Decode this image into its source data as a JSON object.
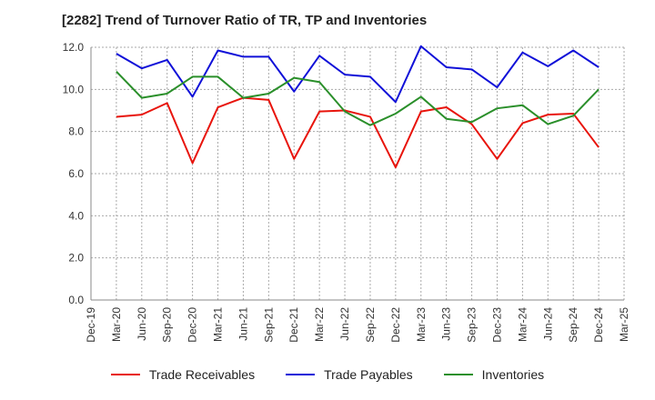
{
  "chart_data": {
    "type": "line",
    "title": "[2282]  Trend of Turnover Ratio of TR, TP and Inventories",
    "xlabel": "",
    "ylabel": "",
    "ylim": [
      0,
      12
    ],
    "yticks": [
      "0.0",
      "2.0",
      "4.0",
      "6.0",
      "8.0",
      "10.0",
      "12.0"
    ],
    "x_tick_labels": [
      "Dec-19",
      "Mar-20",
      "Jun-20",
      "Sep-20",
      "Dec-20",
      "Mar-21",
      "Jun-21",
      "Sep-21",
      "Dec-21",
      "Mar-22",
      "Jun-22",
      "Sep-22",
      "Dec-22",
      "Mar-23",
      "Jun-23",
      "Sep-23",
      "Dec-23",
      "Mar-24",
      "Jun-24",
      "Sep-24",
      "Dec-24",
      "Mar-25"
    ],
    "grid": true,
    "legend_position": "bottom",
    "series": [
      {
        "name": "Trade Receivables",
        "color": "#e8140c",
        "x": [
          "Mar-20",
          "Jun-20",
          "Sep-20",
          "Dec-20",
          "Mar-21",
          "Jun-21",
          "Sep-21",
          "Dec-21",
          "Mar-22",
          "Jun-22",
          "Sep-22",
          "Dec-22",
          "Mar-23",
          "Jun-23",
          "Sep-23",
          "Dec-23",
          "Mar-24",
          "Jun-24",
          "Sep-24",
          "Dec-24"
        ],
        "values": [
          8.7,
          8.8,
          9.35,
          6.5,
          9.15,
          9.6,
          9.5,
          6.7,
          8.95,
          9.0,
          8.7,
          6.3,
          8.95,
          9.15,
          8.35,
          6.7,
          8.4,
          8.8,
          8.85,
          7.25
        ]
      },
      {
        "name": "Trade Payables",
        "color": "#1010d8",
        "x": [
          "Mar-20",
          "Jun-20",
          "Sep-20",
          "Dec-20",
          "Mar-21",
          "Jun-21",
          "Sep-21",
          "Dec-21",
          "Mar-22",
          "Jun-22",
          "Sep-22",
          "Dec-22",
          "Mar-23",
          "Jun-23",
          "Sep-23",
          "Dec-23",
          "Mar-24",
          "Jun-24",
          "Sep-24",
          "Dec-24"
        ],
        "values": [
          11.7,
          11.0,
          11.4,
          9.65,
          11.85,
          11.55,
          11.55,
          9.9,
          11.6,
          10.7,
          10.6,
          9.4,
          12.05,
          11.05,
          10.95,
          10.1,
          11.75,
          11.1,
          11.85,
          11.05
        ]
      },
      {
        "name": "Inventories",
        "color": "#2a8f2a",
        "x": [
          "Mar-20",
          "Jun-20",
          "Sep-20",
          "Dec-20",
          "Mar-21",
          "Jun-21",
          "Sep-21",
          "Dec-21",
          "Mar-22",
          "Jun-22",
          "Sep-22",
          "Dec-22",
          "Mar-23",
          "Jun-23",
          "Sep-23",
          "Dec-23",
          "Mar-24",
          "Jun-24",
          "Sep-24",
          "Dec-24"
        ],
        "values": [
          10.85,
          9.6,
          9.8,
          10.6,
          10.6,
          9.6,
          9.8,
          10.55,
          10.35,
          8.95,
          8.3,
          8.85,
          9.65,
          8.6,
          8.45,
          9.1,
          9.25,
          8.35,
          8.75,
          10.0
        ]
      }
    ]
  }
}
